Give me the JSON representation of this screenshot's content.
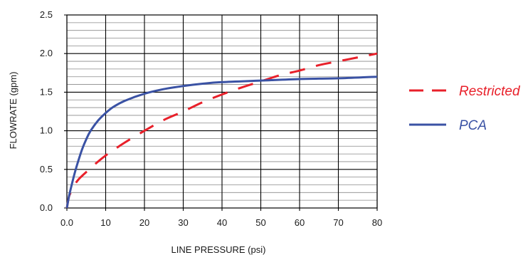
{
  "chart_data": {
    "type": "line",
    "title": "",
    "xlabel": "LINE PRESSURE (psi)",
    "ylabel": "FLOWRATE (gpm)",
    "xlim": [
      0,
      80
    ],
    "ylim": [
      0,
      2.5
    ],
    "x_ticks": [
      0,
      10,
      20,
      30,
      40,
      50,
      60,
      70,
      80
    ],
    "x_tick_labels": [
      "0.0",
      "10",
      "20",
      "30",
      "40",
      "50",
      "60",
      "70",
      "80"
    ],
    "y_ticks": [
      0,
      0.5,
      1.0,
      1.5,
      2.0,
      2.5
    ],
    "y_tick_labels": [
      "0.0",
      "0.5",
      "1.0",
      "1.5",
      "2.0",
      "2.5"
    ],
    "grid": true,
    "legend_position": "right",
    "series": [
      {
        "name": "Restricted",
        "color": "#e8202a",
        "style": "dashed",
        "x": [
          0,
          0.5,
          1,
          2,
          3,
          4,
          6,
          8,
          10,
          12,
          15,
          20,
          25,
          30,
          35,
          40,
          45,
          50,
          55,
          60,
          65,
          70,
          75,
          80
        ],
        "y": [
          0,
          0.14,
          0.2,
          0.3,
          0.37,
          0.42,
          0.51,
          0.6,
          0.68,
          0.75,
          0.85,
          1.0,
          1.14,
          1.25,
          1.37,
          1.47,
          1.56,
          1.64,
          1.72,
          1.78,
          1.85,
          1.9,
          1.95,
          2.0
        ]
      },
      {
        "name": "PCA",
        "color": "#3a52a4",
        "style": "solid",
        "x": [
          0,
          0.5,
          1,
          2,
          3,
          4,
          5,
          6,
          8,
          10,
          12,
          15,
          20,
          25,
          30,
          35,
          40,
          50,
          60,
          70,
          80
        ],
        "y": [
          0,
          0.14,
          0.25,
          0.45,
          0.62,
          0.77,
          0.89,
          0.99,
          1.13,
          1.23,
          1.31,
          1.39,
          1.48,
          1.54,
          1.58,
          1.61,
          1.63,
          1.65,
          1.67,
          1.68,
          1.7
        ]
      }
    ]
  }
}
